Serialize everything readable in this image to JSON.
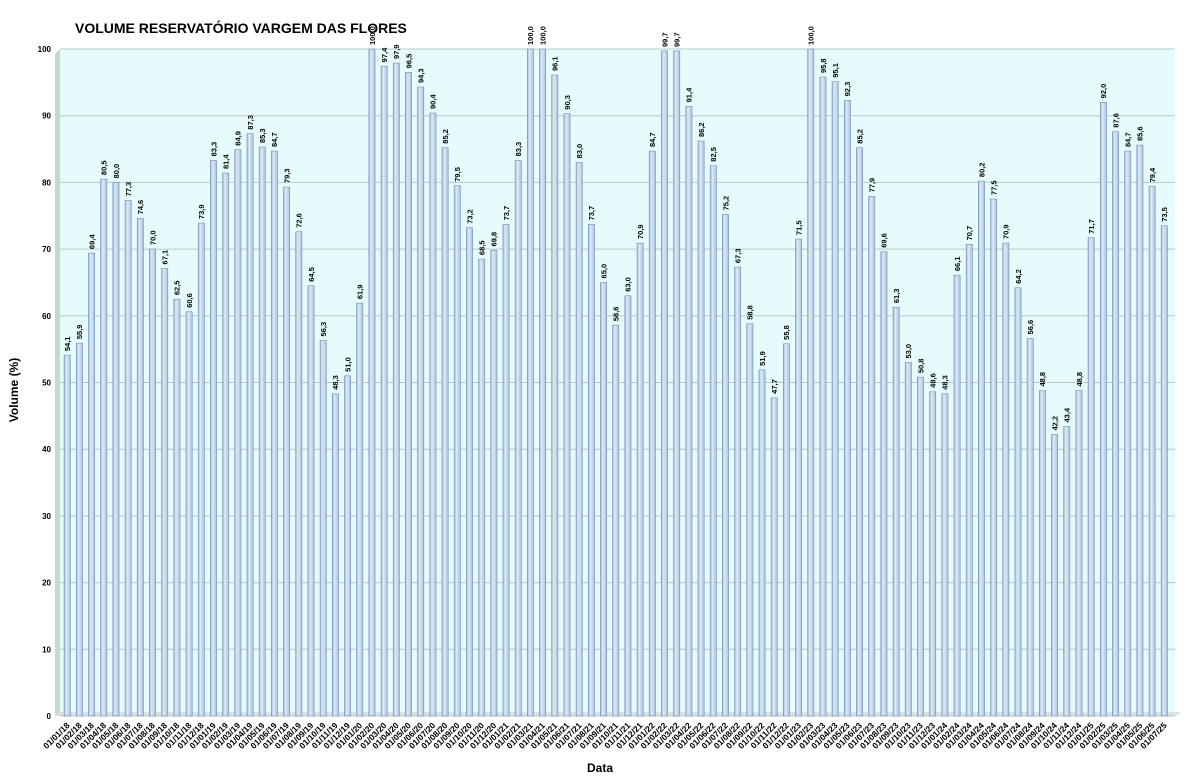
{
  "chart_data": {
    "type": "bar",
    "title": "VOLUME RESERVATÓRIO VARGEM DAS FLORES",
    "xlabel": "Data",
    "ylabel": "Volume (%)",
    "ylim": [
      0,
      100
    ],
    "yticks": [
      "0",
      "10",
      "20",
      "30",
      "40",
      "50",
      "60",
      "70",
      "80",
      "90",
      "100"
    ],
    "grid": true,
    "legend": "none",
    "colors": {
      "bar_fill": "#bcd3ec",
      "bar_edge": "#6f8fb5",
      "plot_bg": "#e6fbfb",
      "grid": "#b9c9c9"
    },
    "categories": [
      "01/01/18",
      "01/02/18",
      "01/03/18",
      "01/04/18",
      "01/05/18",
      "01/06/18",
      "01/07/18",
      "01/08/18",
      "01/09/18",
      "01/10/18",
      "01/11/18",
      "01/12/18",
      "01/01/19",
      "01/02/19",
      "01/03/19",
      "01/04/19",
      "01/05/19",
      "01/06/19",
      "01/07/19",
      "01/08/19",
      "01/09/19",
      "01/10/19",
      "01/11/19",
      "01/12/19",
      "01/01/20",
      "01/02/20",
      "01/03/20",
      "01/04/20",
      "01/05/20",
      "01/06/20",
      "01/07/20",
      "01/08/20",
      "01/09/20",
      "01/10/20",
      "01/11/20",
      "01/12/20",
      "01/01/21",
      "01/02/21",
      "01/03/21",
      "01/04/21",
      "01/05/21",
      "01/06/21",
      "01/07/21",
      "01/08/21",
      "01/09/21",
      "01/10/21",
      "01/11/21",
      "01/12/21",
      "01/01/22",
      "01/02/22",
      "01/03/22",
      "01/04/22",
      "01/05/22",
      "01/06/22",
      "01/07/22",
      "01/08/22",
      "01/09/22",
      "01/10/22",
      "01/11/22",
      "01/12/22",
      "01/01/23",
      "01/02/23",
      "01/03/23",
      "01/04/23",
      "01/05/23",
      "01/06/23",
      "01/07/23",
      "01/08/23",
      "01/09/23",
      "01/10/23",
      "01/11/23",
      "01/12/23",
      "01/01/24",
      "01/02/24",
      "01/03/24",
      "01/04/24",
      "01/05/24",
      "01/06/24",
      "01/07/24",
      "01/08/24",
      "01/09/24",
      "01/10/24",
      "01/11/24",
      "01/12/24",
      "01/01/25",
      "01/02/25",
      "01/03/25",
      "01/04/25",
      "01/05/25",
      "01/06/25",
      "01/07/25"
    ],
    "values": [
      54.1,
      55.9,
      69.4,
      80.5,
      80.0,
      77.3,
      74.6,
      70.0,
      67.1,
      62.5,
      60.6,
      73.9,
      83.3,
      81.4,
      84.9,
      87.3,
      85.3,
      84.7,
      79.3,
      72.6,
      64.5,
      56.3,
      48.3,
      51.0,
      61.9,
      100.0,
      97.4,
      97.9,
      96.5,
      94.3,
      90.4,
      85.2,
      79.5,
      73.2,
      68.5,
      69.8,
      73.7,
      83.3,
      100.0,
      100.0,
      96.1,
      90.3,
      83.0,
      73.7,
      65.0,
      58.6,
      63.0,
      70.9,
      84.7,
      99.7,
      99.7,
      91.4,
      86.2,
      82.5,
      75.2,
      67.3,
      58.8,
      51.9,
      47.7,
      55.8,
      71.5,
      100.0,
      95.8,
      95.1,
      92.3,
      85.2,
      77.9,
      69.6,
      61.3,
      53.0,
      50.8,
      48.6,
      48.3,
      66.1,
      70.7,
      80.2,
      77.5,
      70.9,
      64.2,
      56.6,
      48.8,
      42.2,
      43.4,
      48.8,
      71.7,
      92.0,
      87.6,
      84.7,
      85.6,
      79.4,
      73.5
    ],
    "data_labels": [
      "54,1",
      "55,9",
      "69,4",
      "80,5",
      "80,0",
      "77,3",
      "74,6",
      "70,0",
      "67,1",
      "62,5",
      "60,6",
      "73,9",
      "83,3",
      "81,4",
      "84,9",
      "87,3",
      "85,3",
      "84,7",
      "79,3",
      "72,6",
      "64,5",
      "56,3",
      "48,3",
      "51,0",
      "61,9",
      "100,0",
      "97,4",
      "97,9",
      "96,5",
      "94,3",
      "90,4",
      "85,2",
      "79,5",
      "73,2",
      "68,5",
      "69,8",
      "73,7",
      "83,3",
      "100,0",
      "100,0",
      "96,1",
      "90,3",
      "83,0",
      "73,7",
      "65,0",
      "58,6",
      "63,0",
      "70,9",
      "84,7",
      "99,7",
      "99,7",
      "91,4",
      "86,2",
      "82,5",
      "75,2",
      "67,3",
      "58,8",
      "51,9",
      "47,7",
      "55,8",
      "71,5",
      "100,0",
      "95,8",
      "95,1",
      "92,3",
      "85,2",
      "77,9",
      "69,6",
      "61,3",
      "53,0",
      "50,8",
      "48,6",
      "48,3",
      "66,1",
      "70,7",
      "80,2",
      "77,5",
      "70,9",
      "64,2",
      "56,6",
      "48,8",
      "42,2",
      "43,4",
      "48,8",
      "71,7",
      "92,0",
      "87,6",
      "84,7",
      "85,6",
      "79,4",
      "73,5"
    ]
  }
}
